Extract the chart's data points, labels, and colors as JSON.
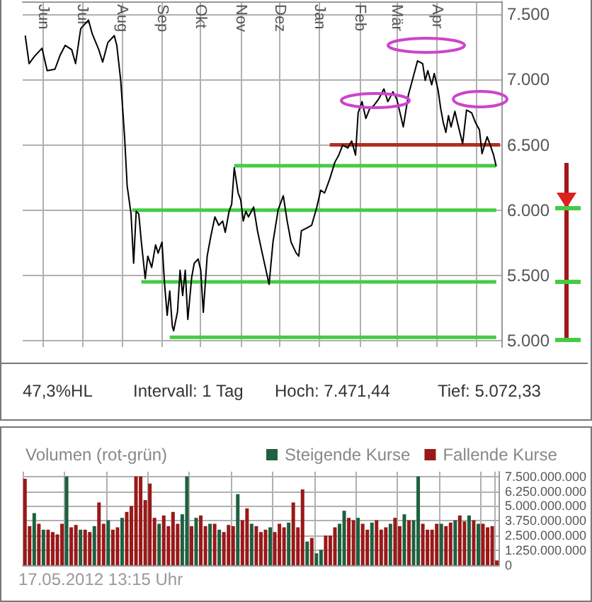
{
  "chart_data": [
    {
      "type": "line",
      "annotations": [
        "47,3%HL",
        "Intervall: 1 Tag",
        "Hoch: 7.471,44",
        "Tief: 5.072,33"
      ],
      "xlim": [
        "2011-05-16",
        "2012-05-21"
      ],
      "xticks": [
        {
          "value": "2011-06-01",
          "label": "Jun"
        },
        {
          "value": "2011-07-01",
          "label": "Jul"
        },
        {
          "value": "2011-08-01",
          "label": "Aug"
        },
        {
          "value": "2011-09-01",
          "label": "Sep"
        },
        {
          "value": "2011-10-01",
          "label": "Okt"
        },
        {
          "value": "2011-11-01",
          "label": "Nov"
        },
        {
          "value": "2011-12-01",
          "label": "Dez"
        },
        {
          "value": "2012-01-01",
          "label": "Jan"
        },
        {
          "value": "2012-02-01",
          "label": "Feb"
        },
        {
          "value": "2012-03-01",
          "label": "Mär"
        },
        {
          "value": "2012-04-01",
          "label": "Apr"
        },
        {
          "value": "2012-05-01",
          "label": null
        }
      ],
      "ylim": [
        4950,
        7600
      ],
      "yticks": [
        {
          "value": 5000,
          "label": "5.000"
        },
        {
          "value": 5500,
          "label": "5.500"
        },
        {
          "value": 6000,
          "label": "6.000"
        },
        {
          "value": 6500,
          "label": "6.500"
        },
        {
          "value": 7000,
          "label": "7.000"
        },
        {
          "value": 7500,
          "label": "7.500"
        }
      ],
      "grid": true,
      "series": [
        {
          "color": "#000000",
          "x": [
            "2011-05-18",
            "2011-05-21",
            "2011-05-25",
            "2011-05-31",
            "2011-06-04",
            "2011-06-10",
            "2011-06-14",
            "2011-06-18",
            "2011-06-23",
            "2011-06-26",
            "2011-06-30",
            "2011-07-06",
            "2011-07-09",
            "2011-07-14",
            "2011-07-17",
            "2011-07-21",
            "2011-07-26",
            "2011-07-28",
            "2011-07-31",
            "2011-08-03",
            "2011-08-05",
            "2011-08-08",
            "2011-08-10",
            "2011-08-12",
            "2011-08-14",
            "2011-08-16",
            "2011-08-19",
            "2011-08-21",
            "2011-08-24",
            "2011-08-27",
            "2011-08-29",
            "2011-09-01",
            "2011-09-03",
            "2011-09-05",
            "2011-09-07",
            "2011-09-09",
            "2011-09-10",
            "2011-09-13",
            "2011-09-15",
            "2011-09-17",
            "2011-09-19",
            "2011-09-21",
            "2011-09-24",
            "2011-09-26",
            "2011-09-29",
            "2011-10-01",
            "2011-10-03",
            "2011-10-06",
            "2011-10-09",
            "2011-10-12",
            "2011-10-15",
            "2011-10-18",
            "2011-10-20",
            "2011-10-23",
            "2011-10-25",
            "2011-10-27",
            "2011-10-30",
            "2011-11-01",
            "2011-11-03",
            "2011-11-05",
            "2011-11-07",
            "2011-11-11",
            "2011-11-14",
            "2011-11-17",
            "2011-11-23",
            "2011-11-26",
            "2011-11-30",
            "2011-12-04",
            "2011-12-07",
            "2011-12-10",
            "2011-12-14",
            "2011-12-16",
            "2011-12-18",
            "2011-12-22",
            "2011-12-26",
            "2011-12-30",
            "2012-01-02",
            "2012-01-05",
            "2012-01-09",
            "2012-01-13",
            "2012-01-16",
            "2012-01-19",
            "2012-01-23",
            "2012-01-26",
            "2012-01-29",
            "2012-01-31",
            "2012-02-03",
            "2012-02-06",
            "2012-02-09",
            "2012-02-12",
            "2012-02-16",
            "2012-02-20",
            "2012-02-23",
            "2012-02-27",
            "2012-03-01",
            "2012-03-06",
            "2012-03-10",
            "2012-03-13",
            "2012-03-17",
            "2012-03-21",
            "2012-03-23",
            "2012-03-25",
            "2012-03-28",
            "2012-03-30",
            "2012-04-02",
            "2012-04-04",
            "2012-04-06",
            "2012-04-08",
            "2012-04-10",
            "2012-04-12",
            "2012-04-15",
            "2012-04-17",
            "2012-04-21",
            "2012-04-24",
            "2012-04-28",
            "2012-05-01",
            "2012-05-04",
            "2012-05-06",
            "2012-05-10",
            "2012-05-12",
            "2012-05-15",
            "2012-05-17"
          ],
          "values": [
            7338,
            7123,
            7177,
            7241,
            7069,
            7080,
            7187,
            7263,
            7230,
            7123,
            7392,
            7457,
            7349,
            7230,
            7134,
            7284,
            7338,
            7260,
            6994,
            6562,
            6185,
            5970,
            5593,
            5991,
            5970,
            5754,
            5474,
            5647,
            5560,
            5733,
            5670,
            5754,
            5431,
            5194,
            5380,
            5108,
            5075,
            5220,
            5539,
            5345,
            5539,
            5162,
            5485,
            5593,
            5625,
            5539,
            5216,
            5647,
            5808,
            5948,
            5884,
            5916,
            5830,
            5991,
            6045,
            6325,
            6131,
            6078,
            5916,
            5991,
            5948,
            6024,
            5841,
            5700,
            5431,
            5754,
            6002,
            6110,
            5916,
            5754,
            5670,
            5647,
            5841,
            5862,
            5884,
            6024,
            6153,
            6131,
            6239,
            6368,
            6422,
            6498,
            6476,
            6530,
            6422,
            6746,
            6832,
            6703,
            6778,
            6800,
            6853,
            6929,
            6832,
            6907,
            6850,
            6638,
            6886,
            6994,
            7144,
            7123,
            6994,
            7069,
            6961,
            7047,
            6918,
            6778,
            6670,
            6595,
            6724,
            6638,
            6757,
            6670,
            6509,
            6767,
            6745,
            6670,
            6616,
            6433,
            6562,
            6509,
            6422,
            6336
          ]
        },
        {
          "color": "#44cc44",
          "x": [
            "2011-08-09",
            "2012-05-17"
          ],
          "values": [
            6000,
            6000
          ]
        },
        {
          "color": "#44cc44",
          "x": [
            "2011-08-16",
            "2012-05-17"
          ],
          "values": [
            5450,
            5450
          ]
        },
        {
          "color": "#44cc44",
          "x": [
            "2011-09-07",
            "2012-05-17"
          ],
          "values": [
            5025,
            5025
          ]
        },
        {
          "color": "#44cc44",
          "x": [
            "2011-10-27",
            "2012-05-17"
          ],
          "values": [
            6340,
            6340
          ]
        },
        {
          "color": "#b03020",
          "x": [
            "2012-01-09",
            "2012-05-20"
          ],
          "values": [
            6500,
            6500
          ]
        }
      ]
    },
    {
      "type": "bar",
      "title": "Volumen (rot-grün)",
      "annotations": [
        "17.05.2012 13:15 Uhr"
      ],
      "legend": "top",
      "grid": true,
      "tick_labels": "y",
      "categories": [
        null,
        null,
        null,
        null,
        null,
        null,
        null,
        null,
        null,
        null,
        null,
        null,
        null,
        null,
        null,
        null,
        null,
        null,
        null,
        null,
        null,
        null,
        null,
        null,
        null,
        null,
        null,
        null,
        null,
        null,
        null,
        null,
        null,
        null,
        null,
        null,
        null,
        null,
        null,
        null,
        null,
        null,
        null,
        null,
        null,
        null,
        null,
        null,
        null,
        null,
        null,
        null,
        null,
        null,
        null,
        null,
        null,
        null,
        null,
        null,
        null,
        null,
        null,
        null,
        null,
        null,
        null,
        null,
        null,
        null,
        null,
        null,
        null,
        null,
        null,
        null,
        null,
        null,
        null,
        null,
        null,
        null,
        null,
        null,
        null,
        null,
        null,
        null,
        null,
        null,
        null,
        null,
        null,
        null,
        null,
        null,
        null,
        null,
        null,
        null,
        null,
        null,
        null
      ],
      "ylim": [
        0,
        7900000000
      ],
      "yticks": [
        0,
        {
          "value": 1250000000,
          "label": "1.250.000.000"
        },
        {
          "value": 2500000000,
          "label": "2.500.000.000"
        },
        {
          "value": 3750000000,
          "label": "3.750.000.000"
        },
        {
          "value": 5000000000,
          "label": "5.000.000.000"
        },
        {
          "value": 6250000000,
          "label": "6.250.000.000"
        },
        {
          "value": 7500000000,
          "label": "7.500.000.000"
        }
      ],
      "series": [
        {
          "name": "Steigende Kurse",
          "color": "#1e6040",
          "values": [
            null,
            null,
            4400000000,
            null,
            3000000000,
            null,
            null,
            null,
            null,
            7500000000,
            null,
            null,
            3000000000,
            null,
            null,
            3300000000,
            null,
            null,
            3800000000,
            null,
            null,
            4000000000,
            null,
            null,
            null,
            null,
            null,
            null,
            null,
            3500000000,
            null,
            null,
            null,
            null,
            4300000000,
            7500000000,
            null,
            4000000000,
            null,
            null,
            3500000000,
            null,
            3000000000,
            null,
            null,
            null,
            6000000000,
            null,
            null,
            3500000000,
            null,
            null,
            null,
            3200000000,
            null,
            null,
            null,
            3600000000,
            null,
            null,
            null,
            2000000000,
            null,
            1000000000,
            1300000000,
            null,
            null,
            null,
            3500000000,
            4600000000,
            null,
            null,
            4000000000,
            null,
            null,
            3600000000,
            null,
            null,
            null,
            3500000000,
            null,
            null,
            4300000000,
            null,
            3800000000,
            7500000000,
            null,
            null,
            null,
            null,
            3500000000,
            null,
            null,
            3800000000,
            null,
            null,
            4200000000,
            null,
            3500000000,
            null,
            null,
            null,
            null
          ]
        },
        {
          "name": "Fallende Kurse",
          "color": "#9a1818",
          "values": [
            7300000000,
            3300000000,
            null,
            3500000000,
            null,
            3000000000,
            2800000000,
            2600000000,
            3500000000,
            null,
            3200000000,
            3400000000,
            null,
            3000000000,
            2800000000,
            null,
            5300000000,
            3500000000,
            null,
            3000000000,
            3200000000,
            null,
            4500000000,
            5000000000,
            7500000000,
            7500000000,
            5500000000,
            6900000000,
            4000000000,
            null,
            4200000000,
            3300000000,
            4500000000,
            3500000000,
            null,
            null,
            3300000000,
            null,
            4200000000,
            3300000000,
            null,
            3500000000,
            null,
            2800000000,
            3400000000,
            3300000000,
            null,
            3800000000,
            4800000000,
            null,
            3300000000,
            2800000000,
            3000000000,
            null,
            2800000000,
            3500000000,
            3200000000,
            null,
            5300000000,
            3200000000,
            6400000000,
            null,
            2300000000,
            null,
            null,
            2500000000,
            2500000000,
            3200000000,
            null,
            null,
            4000000000,
            3800000000,
            null,
            3500000000,
            3000000000,
            null,
            3800000000,
            3000000000,
            3200000000,
            null,
            4000000000,
            3300000000,
            null,
            3800000000,
            null,
            null,
            3500000000,
            3000000000,
            3000000000,
            3500000000,
            null,
            3300000000,
            3600000000,
            null,
            4200000000,
            3700000000,
            null,
            3800000000,
            null,
            3500000000,
            3200000000,
            3300000000,
            400000000
          ]
        }
      ]
    }
  ]
}
